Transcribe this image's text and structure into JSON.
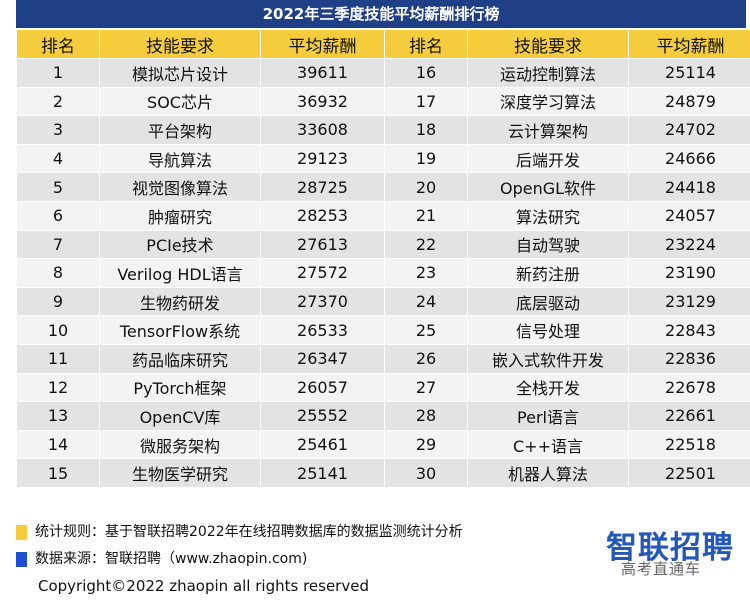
{
  "title": "2022年三季度技能平均薪酬排行榜",
  "headers": [
    "排名",
    "技能要求",
    "平均薪酬",
    "排名",
    "技能要求",
    "平均薪酬"
  ],
  "rows": [
    [
      "1",
      "模拟芯片设计",
      "39611",
      "16",
      "运动控制算法",
      "25114"
    ],
    [
      "2",
      "SOC芯片",
      "36932",
      "17",
      "深度学习算法",
      "24879"
    ],
    [
      "3",
      "平台架构",
      "33608",
      "18",
      "云计算架构",
      "24702"
    ],
    [
      "4",
      "导航算法",
      "29123",
      "19",
      "后端开发",
      "24666"
    ],
    [
      "5",
      "视觉图像算法",
      "28725",
      "20",
      "OpenGL软件",
      "24418"
    ],
    [
      "6",
      "肿瘤研究",
      "28253",
      "21",
      "算法研究",
      "24057"
    ],
    [
      "7",
      "PCIe技术",
      "27613",
      "22",
      "自动驾驶",
      "23224"
    ],
    [
      "8",
      "Verilog HDL语言",
      "27572",
      "23",
      "新药注册",
      "23190"
    ],
    [
      "9",
      "生物药研发",
      "27370",
      "24",
      "底层驱动",
      "23129"
    ],
    [
      "10",
      "TensorFlow系统",
      "26533",
      "25",
      "信号处理",
      "22843"
    ],
    [
      "11",
      "药品临床研究",
      "26347",
      "26",
      "嵌入式软件开发",
      "22836"
    ],
    [
      "12",
      "PyTorch框架",
      "26057",
      "27",
      "全栈开发",
      "22678"
    ],
    [
      "13",
      "OpenCV库",
      "25552",
      "28",
      "Perl语言",
      "22661"
    ],
    [
      "14",
      "微服务架构",
      "25461",
      "29",
      "C++语言",
      "22518"
    ],
    [
      "15",
      "生物医学研究",
      "25141",
      "30",
      "机器人算法",
      "22501"
    ]
  ],
  "notes": {
    "rule": "统计规则：基于智联招聘2022年在线招聘数据库的数据监测统计分析",
    "source": "数据来源：智联招聘（www.zhaopin.com)"
  },
  "logo": "智联招聘",
  "watermark": "高考直通车",
  "copyright": "Copyright©2022 zhaopin all rights reserved",
  "colors": {
    "title_bg": "#1f3f86",
    "header_bg": "#f5cd3c",
    "rule_swatch": "#f5cd3c",
    "source_swatch": "#1f4fd0",
    "logo": "#2457b8"
  }
}
